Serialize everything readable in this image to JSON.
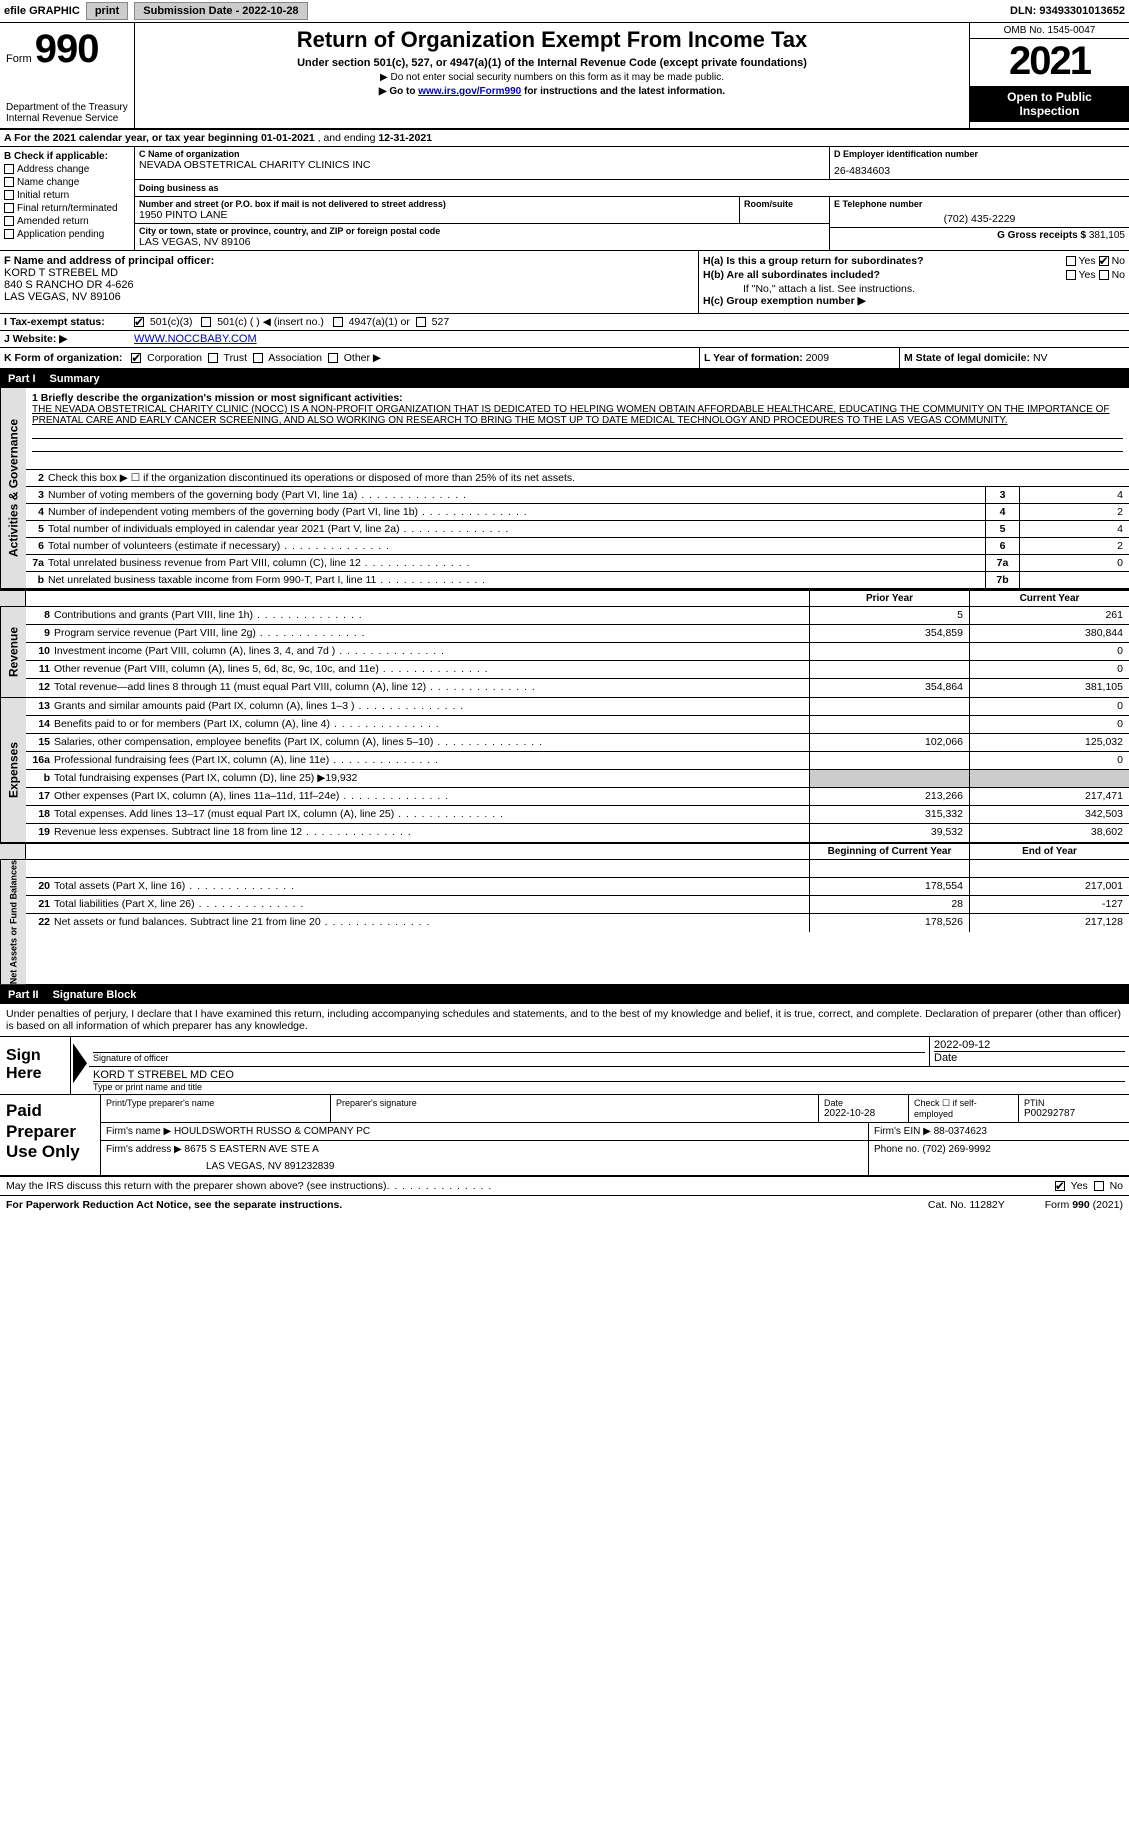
{
  "topbar": {
    "efile_prefix": "efile",
    "efile_suffix": "GRAPHIC",
    "print_btn": "print",
    "submission_label": "Submission Date - 2022-10-28",
    "dln": "DLN: 93493301013652"
  },
  "header": {
    "form_word": "Form",
    "form_no": "990",
    "dept1": "Department of the Treasury",
    "dept2": "Internal Revenue Service",
    "title": "Return of Organization Exempt From Income Tax",
    "sub1": "Under section 501(c), 527, or 4947(a)(1) of the Internal Revenue Code (except private foundations)",
    "sub2": "▶ Do not enter social security numbers on this form as it may be made public.",
    "sub3_pre": "▶ Go to ",
    "sub3_link": "www.irs.gov/Form990",
    "sub3_post": " for instructions and the latest information.",
    "omb": "OMB No. 1545-0047",
    "year": "2021",
    "open1": "Open to Public",
    "open2": "Inspection"
  },
  "row_a": {
    "text_pre": "A For the 2021 calendar year, or tax year beginning ",
    "beg": "01-01-2021",
    "mid": "   , and ending ",
    "end": "12-31-2021"
  },
  "col_b": {
    "hdr": "B Check if applicable:",
    "items": [
      "Address change",
      "Name change",
      "Initial return",
      "Final return/terminated",
      "Amended return",
      "Application pending"
    ]
  },
  "org": {
    "c_label": "C Name of organization",
    "name": "NEVADA OBSTETRICAL CHARITY CLINICS INC",
    "dba_label": "Doing business as",
    "dba": "",
    "street_label": "Number and street (or P.O. box if mail is not delivered to street address)",
    "street": "1950 PINTO LANE",
    "room_label": "Room/suite",
    "room": "",
    "city_label": "City or town, state or province, country, and ZIP or foreign postal code",
    "city": "LAS VEGAS, NV  89106"
  },
  "right_block": {
    "d_label": "D Employer identification number",
    "ein": "26-4834603",
    "e_label": "E Telephone number",
    "phone": "(702) 435-2229",
    "g_label": "G Gross receipts $",
    "gross": "381,105"
  },
  "fh": {
    "f_label": "F Name and address of principal officer:",
    "name": "KORD T STREBEL MD",
    "addr1": "840 S RANCHO DR 4-626",
    "addr2": "LAS VEGAS, NV  89106",
    "ha_label": "H(a)  Is this a group return for subordinates?",
    "ha_yes": "Yes",
    "ha_no": "No",
    "hb_label": "H(b)  Are all subordinates included?",
    "hb_yes": "Yes",
    "hb_no": "No",
    "hb_note": "If \"No,\" attach a list. See instructions.",
    "hc_label": "H(c)  Group exemption number ▶"
  },
  "tax": {
    "i_label": "I  Tax-exempt status:",
    "opt1": "501(c)(3)",
    "opt2": "501(c) (   ) ◀ (insert no.)",
    "opt3": "4947(a)(1) or",
    "opt4": "527",
    "j_label": "J  Website: ▶",
    "website": "WWW.NOCCBABY.COM"
  },
  "k_row": {
    "k_label": "K Form of organization:",
    "opts": [
      "Corporation",
      "Trust",
      "Association",
      "Other ▶"
    ],
    "l_label": "L Year of formation:",
    "l_val": "2009",
    "m_label": "M State of legal domicile:",
    "m_val": "NV"
  },
  "part1": {
    "part": "Part I",
    "title": "Summary",
    "side1": "Activities & Governance",
    "q1_label": "1  Briefly describe the organization's mission or most significant activities:",
    "q1_text": "THE NEVADA OBSTETRICAL CHARITY CLINIC (NOCC) IS A NON-PROFIT ORGANIZATION THAT IS DEDICATED TO HELPING WOMEN OBTAIN AFFORDABLE HEALTHCARE, EDUCATING THE COMMUNITY ON THE IMPORTANCE OF PRENATAL CARE AND EARLY CANCER SCREENING, AND ALSO WORKING ON RESEARCH TO BRING THE MOST UP TO DATE MEDICAL TECHNOLOGY AND PROCEDURES TO THE LAS VEGAS COMMUNITY.",
    "q2": "Check this box ▶ ☐  if the organization discontinued its operations or disposed of more than 25% of its net assets.",
    "rows": [
      {
        "n": "3",
        "d": "Number of voting members of the governing body (Part VI, line 1a)",
        "box": "3",
        "val": "4"
      },
      {
        "n": "4",
        "d": "Number of independent voting members of the governing body (Part VI, line 1b)",
        "box": "4",
        "val": "2"
      },
      {
        "n": "5",
        "d": "Total number of individuals employed in calendar year 2021 (Part V, line 2a)",
        "box": "5",
        "val": "4"
      },
      {
        "n": "6",
        "d": "Total number of volunteers (estimate if necessary)",
        "box": "6",
        "val": "2"
      },
      {
        "n": "7a",
        "d": "Total unrelated business revenue from Part VIII, column (C), line 12",
        "box": "7a",
        "val": "0"
      },
      {
        "n": "b",
        "d": "Net unrelated business taxable income from Form 990-T, Part I, line 11",
        "box": "7b",
        "val": ""
      }
    ],
    "side2": "Revenue",
    "side3": "Expenses",
    "side4": "Net Assets or Fund Balances",
    "col_prior": "Prior Year",
    "col_current": "Current Year",
    "rev_rows": [
      {
        "n": "8",
        "d": "Contributions and grants (Part VIII, line 1h)",
        "c1": "5",
        "c2": "261"
      },
      {
        "n": "9",
        "d": "Program service revenue (Part VIII, line 2g)",
        "c1": "354,859",
        "c2": "380,844"
      },
      {
        "n": "10",
        "d": "Investment income (Part VIII, column (A), lines 3, 4, and 7d )",
        "c1": "",
        "c2": "0"
      },
      {
        "n": "11",
        "d": "Other revenue (Part VIII, column (A), lines 5, 6d, 8c, 9c, 10c, and 11e)",
        "c1": "",
        "c2": "0"
      },
      {
        "n": "12",
        "d": "Total revenue—add lines 8 through 11 (must equal Part VIII, column (A), line 12)",
        "c1": "354,864",
        "c2": "381,105"
      }
    ],
    "exp_rows": [
      {
        "n": "13",
        "d": "Grants and similar amounts paid (Part IX, column (A), lines 1–3 )",
        "c1": "",
        "c2": "0"
      },
      {
        "n": "14",
        "d": "Benefits paid to or for members (Part IX, column (A), line 4)",
        "c1": "",
        "c2": "0"
      },
      {
        "n": "15",
        "d": "Salaries, other compensation, employee benefits (Part IX, column (A), lines 5–10)",
        "c1": "102,066",
        "c2": "125,032"
      },
      {
        "n": "16a",
        "d": "Professional fundraising fees (Part IX, column (A), line 11e)",
        "c1": "",
        "c2": "0"
      },
      {
        "n": "b",
        "d": "Total fundraising expenses (Part IX, column (D), line 25) ▶19,932",
        "c1": "shade",
        "c2": "shade"
      },
      {
        "n": "17",
        "d": "Other expenses (Part IX, column (A), lines 11a–11d, 11f–24e)",
        "c1": "213,266",
        "c2": "217,471"
      },
      {
        "n": "18",
        "d": "Total expenses. Add lines 13–17 (must equal Part IX, column (A), line 25)",
        "c1": "315,332",
        "c2": "342,503"
      },
      {
        "n": "19",
        "d": "Revenue less expenses. Subtract line 18 from line 12",
        "c1": "39,532",
        "c2": "38,602"
      }
    ],
    "col_beg": "Beginning of Current Year",
    "col_eoy": "End of Year",
    "net_rows": [
      {
        "n": "20",
        "d": "Total assets (Part X, line 16)",
        "c1": "178,554",
        "c2": "217,001"
      },
      {
        "n": "21",
        "d": "Total liabilities (Part X, line 26)",
        "c1": "28",
        "c2": "-127"
      },
      {
        "n": "22",
        "d": "Net assets or fund balances. Subtract line 21 from line 20",
        "c1": "178,526",
        "c2": "217,128"
      }
    ]
  },
  "part2": {
    "part": "Part II",
    "title": "Signature Block",
    "decl": "Under penalties of perjury, I declare that I have examined this return, including accompanying schedules and statements, and to the best of my knowledge and belief, it is true, correct, and complete. Declaration of preparer (other than officer) is based on all information of which preparer has any knowledge.",
    "sign_here": "Sign Here",
    "sig_officer_lbl": "Signature of officer",
    "sig_date_lbl": "Date",
    "sig_date": "2022-09-12",
    "name_title": "KORD T STREBEL MD  CEO",
    "name_title_lbl": "Type or print name and title",
    "paid_label": "Paid Preparer Use Only",
    "prep_name_lbl": "Print/Type preparer's name",
    "prep_name": "",
    "prep_sig_lbl": "Preparer's signature",
    "prep_date_lbl": "Date",
    "prep_date": "2022-10-28",
    "check_if_lbl": "Check ☐ if self-employed",
    "ptin_lbl": "PTIN",
    "ptin": "P00292787",
    "firm_name_lbl": "Firm's name    ▶",
    "firm_name": "HOULDSWORTH RUSSO & COMPANY PC",
    "firm_ein_lbl": "Firm's EIN ▶",
    "firm_ein": "88-0374623",
    "firm_addr_lbl": "Firm's address ▶",
    "firm_addr1": "8675 S EASTERN AVE STE A",
    "firm_addr2": "LAS VEGAS, NV  891232839",
    "phone_lbl": "Phone no.",
    "phone": "(702) 269-9992"
  },
  "footer": {
    "discuss": "May the IRS discuss this return with the preparer shown above? (see instructions)",
    "yes": "Yes",
    "no": "No",
    "paperwork": "For Paperwork Reduction Act Notice, see the separate instructions.",
    "cat": "Cat. No. 11282Y",
    "form": "Form 990 (2021)"
  }
}
